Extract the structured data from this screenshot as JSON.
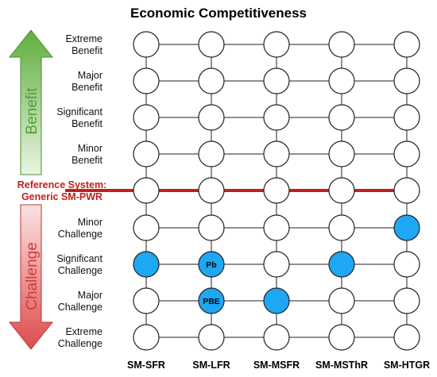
{
  "title": "Economic Competitiveness",
  "benefit_arrow": {
    "label": "Benefit",
    "color_top": "#5fae3c",
    "color_bottom": "#e9f4e2",
    "text_color": "#55a03a"
  },
  "challenge_arrow": {
    "label": "Challenge",
    "color_top": "#fbe3e3",
    "color_bottom": "#dd4b4b",
    "text_color": "#d23a3a"
  },
  "levels": [
    {
      "label": "Extreme Benefit"
    },
    {
      "label": "Major Benefit"
    },
    {
      "label": "Significant Benefit"
    },
    {
      "label": "Minor Benefit"
    },
    {
      "label": "Reference System: Generic SM-PWR",
      "reference": true
    },
    {
      "label": "Minor Challenge"
    },
    {
      "label": "Significant Challenge"
    },
    {
      "label": "Major Challenge"
    },
    {
      "label": "Extreme Challenge"
    }
  ],
  "columns": [
    "SM-SFR",
    "SM-LFR",
    "SM-MSFR",
    "SM-MSThR",
    "SM-HTGR"
  ],
  "filled_nodes": [
    {
      "column": "SM-SFR",
      "level": "Significant Challenge",
      "label": ""
    },
    {
      "column": "SM-LFR",
      "level": "Significant Challenge",
      "label": "Pb"
    },
    {
      "column": "SM-LFR",
      "level": "Major Challenge",
      "label": "PBE"
    },
    {
      "column": "SM-MSFR",
      "level": "Major Challenge",
      "label": ""
    },
    {
      "column": "SM-MSThR",
      "level": "Significant Challenge",
      "label": ""
    },
    {
      "column": "SM-HTGR",
      "level": "Minor Challenge",
      "label": ""
    }
  ],
  "colors": {
    "node_fill": "#ffffff",
    "node_filled": "#1ea7f2",
    "reference_line": "#c0201f",
    "grid": "#222222"
  }
}
